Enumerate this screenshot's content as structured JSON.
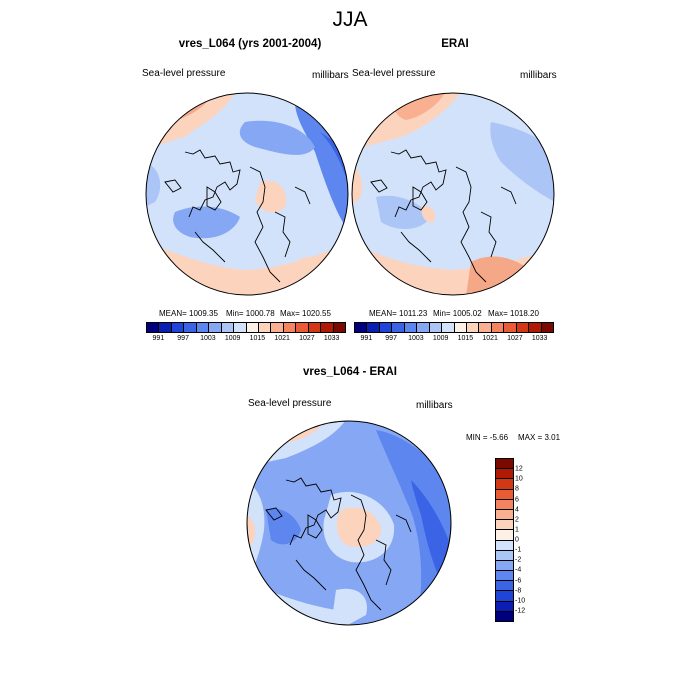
{
  "figure_title": "JJA",
  "panels": [
    {
      "title": "vres_L064 (yrs 2001-2004)",
      "variable_label": "Sea-level pressure",
      "units_label": "millibars",
      "stats": {
        "mean": "MEAN= 1009.35",
        "min": "Min= 1000.78",
        "max": "Max= 1020.55"
      }
    },
    {
      "title": "ERAI",
      "variable_label": "Sea-level pressure",
      "units_label": "millibars",
      "stats": {
        "mean": "MEAN= 1011.23",
        "min": "Min= 1005.02",
        "max": "Max= 1018.20"
      }
    },
    {
      "title": "vres_L064 - ERAI",
      "variable_label": "Sea-level pressure",
      "units_label": "millibars",
      "stats": {
        "min": "MIN =  -5.66",
        "max": "MAX =   3.01"
      }
    }
  ],
  "abs_colorbar": {
    "tick_labels": [
      "991",
      "997",
      "1003",
      "1009",
      "1015",
      "1021",
      "1027",
      "1033"
    ],
    "colors": [
      "#00007f",
      "#0a1eb4",
      "#1f45d8",
      "#3a63e6",
      "#5d86ee",
      "#86a7f3",
      "#acc5f7",
      "#d2e2fb",
      "#fdf0e6",
      "#fcd3bd",
      "#f9b090",
      "#f48460",
      "#e85b35",
      "#d23716",
      "#b01a05",
      "#7a0a00"
    ]
  },
  "diff_colorbar": {
    "tick_labels": [
      "12",
      "10",
      "8",
      "6",
      "4",
      "2",
      "1",
      "0",
      "-1",
      "-2",
      "-4",
      "-6",
      "-8",
      "-10",
      "-12"
    ],
    "colors": [
      "#7a0a00",
      "#b01a05",
      "#d23716",
      "#e85b35",
      "#f48460",
      "#f9b090",
      "#fcd3bd",
      "#fdf0e6",
      "#d2e2fb",
      "#acc5f7",
      "#86a7f3",
      "#5d86ee",
      "#3a63e6",
      "#1f45d8",
      "#0a1eb4",
      "#00007f"
    ]
  }
}
